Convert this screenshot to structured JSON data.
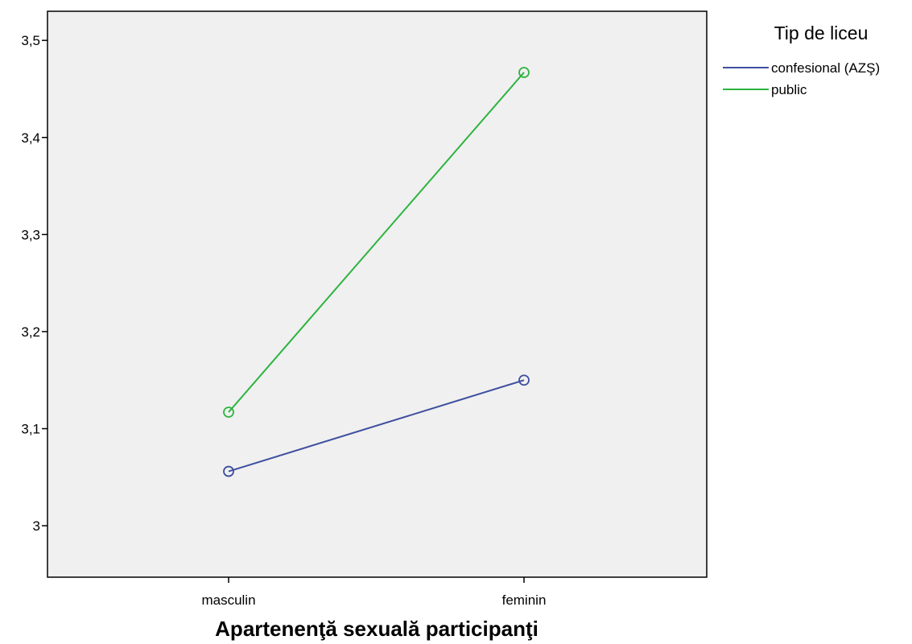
{
  "chart_data": {
    "type": "line",
    "title": "",
    "xlabel": "Apartenenţă sexuală participanţi",
    "ylabel": "",
    "categories": [
      "masculin",
      "feminin"
    ],
    "ylim": [
      2.947,
      3.53
    ],
    "y_ticks": [
      3,
      3.1,
      3.2,
      3.3,
      3.4,
      3.5
    ],
    "y_tick_labels": [
      "3",
      "3,1",
      "3,2",
      "3,3",
      "3,4",
      "3,5"
    ],
    "grid": false,
    "plot_background": "#f0f0f0",
    "legend": {
      "title": "Tip de liceu",
      "placement": "top-right-outside"
    },
    "series": [
      {
        "name": "confesional (AZŞ)",
        "color": "#3f4fa0",
        "values": [
          3.056,
          3.15
        ],
        "marker": "open-circle"
      },
      {
        "name": "public",
        "color": "#2db43f",
        "values": [
          3.117,
          3.467
        ],
        "marker": "open-circle"
      }
    ]
  }
}
